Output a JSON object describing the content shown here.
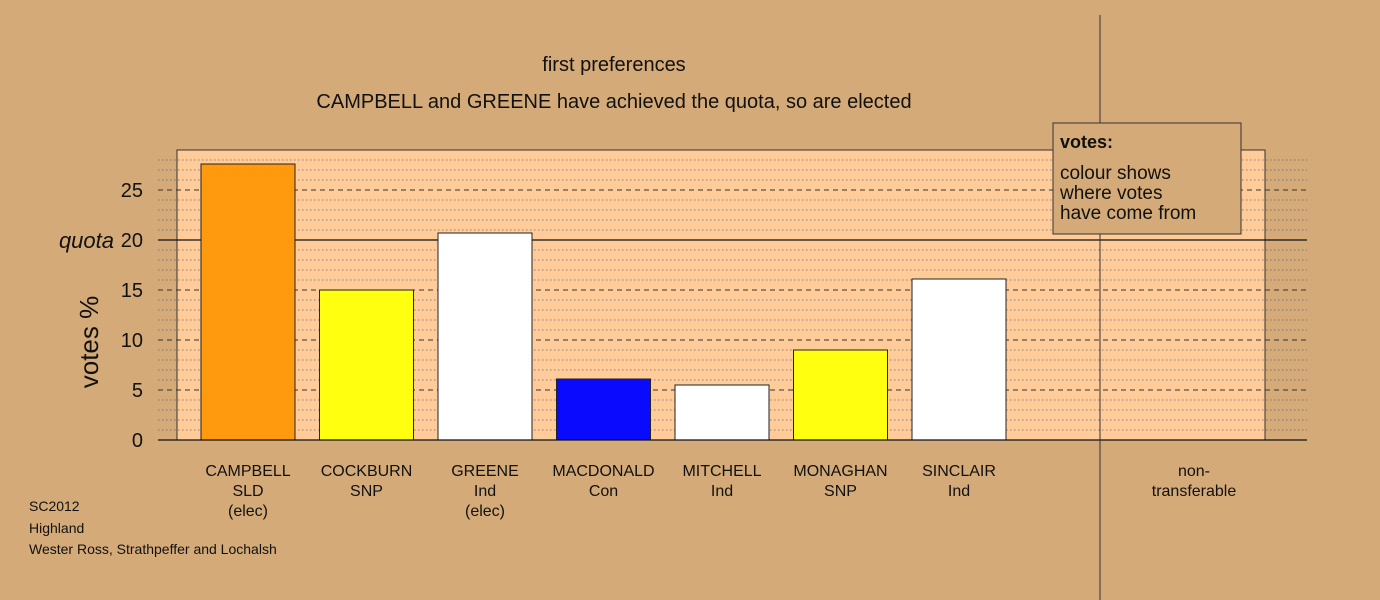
{
  "chart_data": {
    "type": "bar",
    "title_lines": [
      "first preferences",
      "CAMPBELL and GREENE have achieved the quota, so are elected"
    ],
    "ylabel": "votes %",
    "ylim": [
      0,
      29
    ],
    "yticks": [
      0,
      5,
      10,
      15,
      20,
      25
    ],
    "quota": 20,
    "quota_label": "quota",
    "categories": [
      {
        "lines": [
          "CAMPBELL",
          "SLD",
          "(elec)"
        ],
        "value": 27.6,
        "color": "#ff9a0e"
      },
      {
        "lines": [
          "COCKBURN",
          "SNP"
        ],
        "value": 15.0,
        "color": "#ffff10"
      },
      {
        "lines": [
          "GREENE",
          "Ind",
          "(elec)"
        ],
        "value": 20.7,
        "color": "#ffffff"
      },
      {
        "lines": [
          "MACDONALD",
          "Con"
        ],
        "value": 6.1,
        "color": "#0a0aff"
      },
      {
        "lines": [
          "MITCHELL",
          "Ind"
        ],
        "value": 5.5,
        "color": "#ffffff"
      },
      {
        "lines": [
          "MONAGHAN",
          "SNP"
        ],
        "value": 9.0,
        "color": "#ffff10"
      },
      {
        "lines": [
          "SINCLAIR",
          "Ind"
        ],
        "value": 16.1,
        "color": "#ffffff"
      }
    ],
    "nontransferable": {
      "lines": [
        "non-",
        "transferable"
      ],
      "value": 0
    },
    "legend": {
      "title": "votes:",
      "lines": [
        "colour shows",
        "where votes",
        "have come from"
      ]
    },
    "footer": [
      "SC2012",
      "Highland",
      "Wester Ross, Strathpeffer and Lochalsh"
    ],
    "colors": {
      "background": "#d4aa78",
      "plot_area": "#ffcc99",
      "legend_bg": "#d4aa78"
    }
  }
}
